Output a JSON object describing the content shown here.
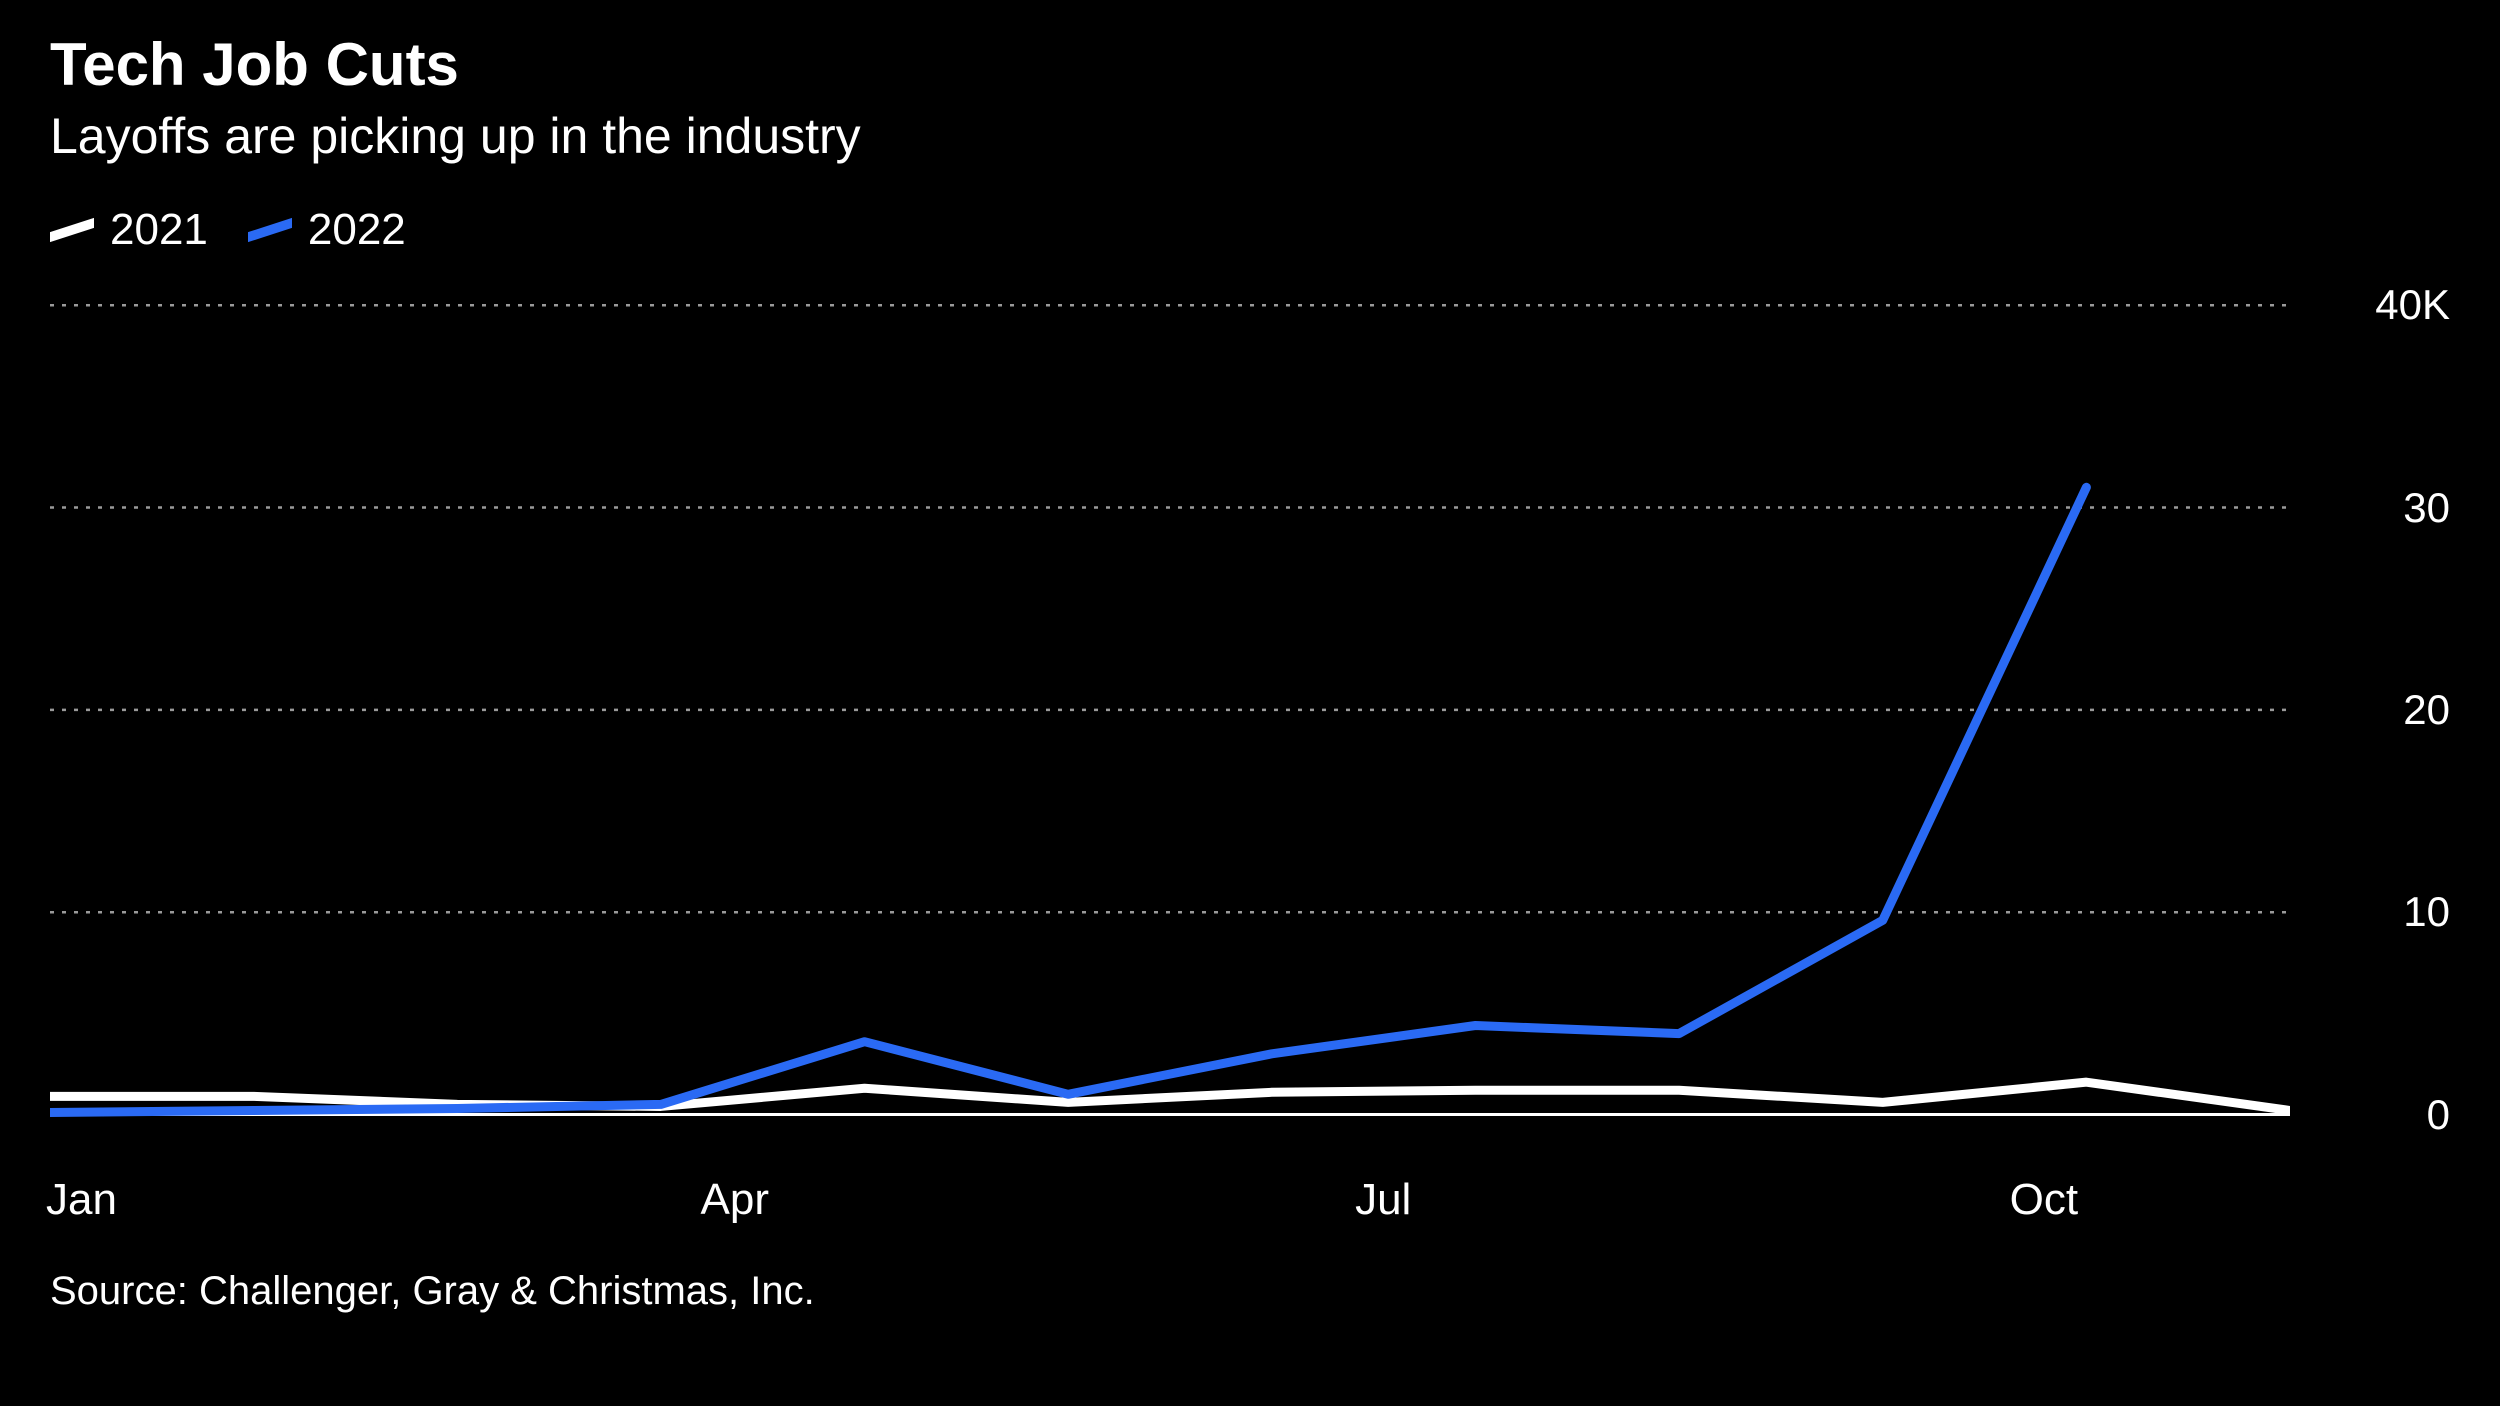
{
  "title": "Tech Job Cuts",
  "subtitle": "Layoffs are picking up in the industry",
  "source": "Source: Challenger, Gray & Christmas, Inc.",
  "colors": {
    "background": "#000000",
    "text": "#ffffff",
    "grid": "#9a9a9a",
    "baseline": "#ffffff",
    "series_2021": "#ffffff",
    "series_2022": "#2a6af4"
  },
  "legend": [
    {
      "label": "2021",
      "color": "#ffffff"
    },
    {
      "label": "2022",
      "color": "#2a6af4"
    }
  ],
  "chart": {
    "type": "line",
    "months": [
      "Jan",
      "Feb",
      "Mar",
      "Apr",
      "May",
      "Jun",
      "Jul",
      "Aug",
      "Sep",
      "Oct",
      "Nov",
      "Dec"
    ],
    "x_tick_labels": {
      "Jan": "Jan",
      "Apr": "Apr",
      "Jul": "Jul",
      "Oct": "Oct"
    },
    "y": {
      "min": -2,
      "max": 41,
      "ticks": [
        0,
        10,
        20,
        30,
        40
      ],
      "tick_labels": [
        "0",
        "10",
        "20",
        "30",
        "40K"
      ]
    },
    "series": {
      "2021": [
        0.9,
        0.9,
        0.5,
        0.4,
        1.3,
        0.6,
        1.1,
        1.2,
        1.2,
        0.6,
        1.6,
        0.2
      ],
      "2022": [
        0.1,
        0.2,
        0.3,
        0.5,
        3.6,
        1.0,
        3.0,
        4.4,
        4.0,
        9.6,
        31.0
      ]
    },
    "line_width": 9,
    "grid_dash": "4 8"
  }
}
